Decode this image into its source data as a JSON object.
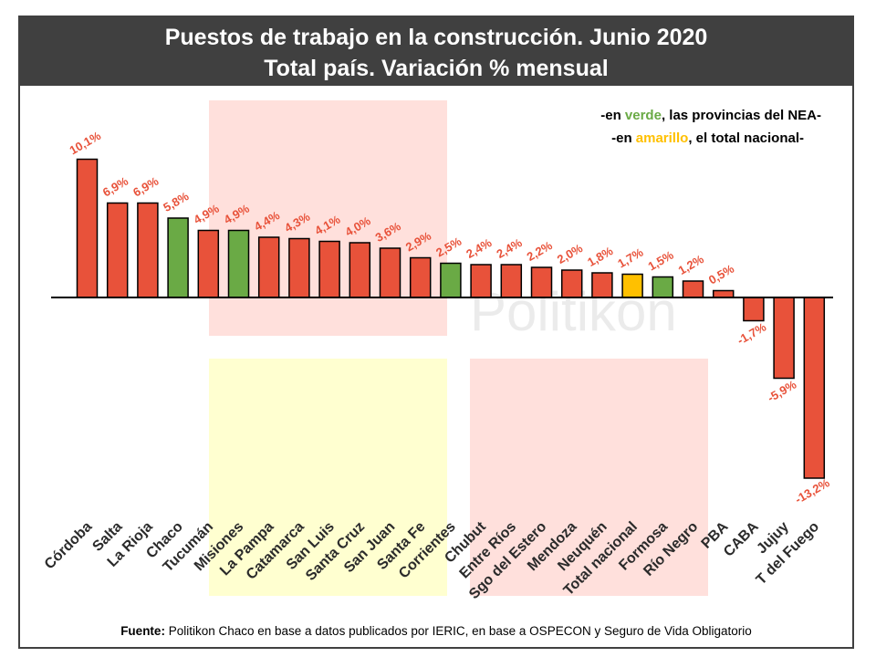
{
  "header": {
    "title_line1": "Puestos de trabajo en la construcción. Junio 2020",
    "title_line2": "Total país. Variación % mensual"
  },
  "legend": {
    "line1_prefix": "-en ",
    "line1_highlight": "verde",
    "line1_suffix": ", las provincias del NEA-",
    "line2_prefix": "-en ",
    "line2_highlight": "amarillo",
    "line2_suffix": ", el total nacional-"
  },
  "watermark": "Politikon",
  "source": {
    "label": "Fuente:",
    "text": " Politikon Chaco en base a datos publicados por IERIC, en base a OSPECON y Seguro de Vida Obligatorio"
  },
  "colors": {
    "default": "#E8523A",
    "nea": "#6AAA45",
    "national": "#FFC000",
    "label": "#E8523A",
    "header_bg": "#404040"
  },
  "chart_data": {
    "type": "bar",
    "title": "Puestos de trabajo en la construcción. Junio 2020 — Total país. Variación % mensual",
    "unit": "%",
    "ylim": [
      -13.2,
      10.1
    ],
    "categories": [
      "Córdoba",
      "Salta",
      "La Rioja",
      "Chaco",
      "Tucumán",
      "Misiones",
      "La Pampa",
      "Catamarca",
      "San Luis",
      "Santa Cruz",
      "San Juan",
      "Santa Fe",
      "Corrientes",
      "Chubut",
      "Entre Ríos",
      "Sgo del Estero",
      "Mendoza",
      "Neuquén",
      "Total nacional",
      "Formosa",
      "Río Negro",
      "PBA",
      "CABA",
      "Jujuy",
      "T del Fuego"
    ],
    "values": [
      10.1,
      6.9,
      6.9,
      5.8,
      4.9,
      4.9,
      4.4,
      4.3,
      4.1,
      4.0,
      3.6,
      2.9,
      2.5,
      2.4,
      2.4,
      2.2,
      2.0,
      1.8,
      1.7,
      1.5,
      1.2,
      0.5,
      -1.7,
      -5.9,
      -13.2
    ],
    "labels": [
      "10,1%",
      "6,9%",
      "6,9%",
      "5,8%",
      "4,9%",
      "4,9%",
      "4,4%",
      "4,3%",
      "4,1%",
      "4,0%",
      "3,6%",
      "2,9%",
      "2,5%",
      "2,4%",
      "2,4%",
      "2,2%",
      "2,0%",
      "1,8%",
      "1,7%",
      "1,5%",
      "1,2%",
      "0,5%",
      "-1,7%",
      "-5,9%",
      "-13,2%"
    ],
    "groups": [
      "default",
      "default",
      "default",
      "nea",
      "default",
      "nea",
      "default",
      "default",
      "default",
      "default",
      "default",
      "default",
      "nea",
      "default",
      "default",
      "default",
      "default",
      "default",
      "national",
      "nea",
      "default",
      "default",
      "default",
      "default",
      "default"
    ]
  }
}
